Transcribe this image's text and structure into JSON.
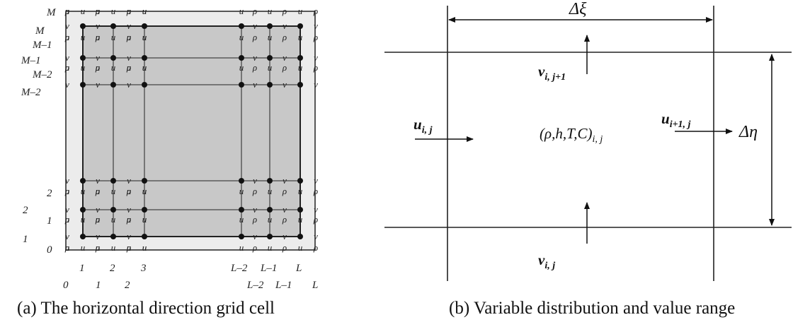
{
  "panel_a": {
    "caption": "(a) The horizontal direction grid cell",
    "left_labels": [
      "M",
      "M–1",
      "M–2",
      "2",
      "1"
    ],
    "left_labels_inner": [
      "M",
      "M–1",
      "M–2",
      "2",
      "1",
      "0"
    ],
    "bottom_labels": [
      "1",
      "2",
      "3",
      "L–2",
      "L–1",
      "L"
    ],
    "bottom_labels_outer": [
      "0",
      "1",
      "2",
      "L–2",
      "L–1",
      "L"
    ],
    "symbols": {
      "u": "u",
      "v": "v",
      "rho": "ρ"
    },
    "colors": {
      "outer_fill": "#ececec",
      "inner_fill": "#c8c8c8",
      "line": "#222222"
    }
  },
  "panel_b": {
    "caption": "(b) Variable distribution and value range",
    "delta_xi": "Δξ",
    "delta_eta": "Δη",
    "center": "(ρ,h,T,C)",
    "center_sub": "i, j",
    "u_left": "u",
    "u_left_sub": "i, j",
    "u_right": "u",
    "u_right_sub": "i+1, j",
    "v_top": "v",
    "v_top_sub": "i, j+1",
    "v_bottom": "v",
    "v_bottom_sub": "i, j"
  }
}
